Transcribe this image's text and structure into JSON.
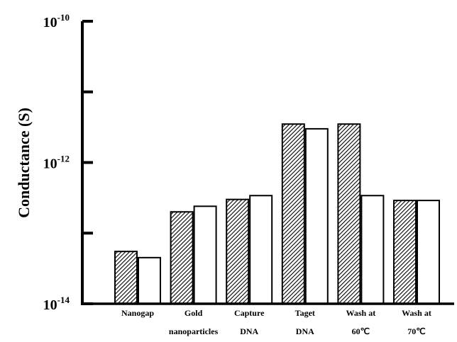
{
  "chart_data": {
    "type": "bar",
    "ylabel": "Conductance (S)",
    "yscale": "log",
    "ylim": [
      1e-14,
      1e-10
    ],
    "y_tick_labels": [
      {
        "base": "10",
        "exp": "-10",
        "value": 1e-10
      },
      {
        "base": "10",
        "exp": "-12",
        "value": 1e-12
      },
      {
        "base": "10",
        "exp": "-14",
        "value": 1e-14
      }
    ],
    "categories": [
      {
        "line1": "Nanogap",
        "line2": ""
      },
      {
        "line1": "Gold",
        "line2": "nanoparticles"
      },
      {
        "line1": "Capture",
        "line2": "DNA"
      },
      {
        "line1": "Taget",
        "line2": "DNA"
      },
      {
        "line1": "Wash at",
        "line2": "60℃"
      },
      {
        "line1": "Wash at",
        "line2": "70℃"
      }
    ],
    "series": [
      {
        "pattern": "hatched",
        "values": [
          5.5e-14,
          2e-13,
          3e-13,
          3.5e-12,
          3.5e-12,
          2.9e-13
        ]
      },
      {
        "pattern": "white",
        "values": [
          4.5e-14,
          2.4e-13,
          3.4e-13,
          3e-12,
          3.4e-13,
          2.9e-13
        ]
      }
    ],
    "grid": false,
    "legend": "none"
  }
}
